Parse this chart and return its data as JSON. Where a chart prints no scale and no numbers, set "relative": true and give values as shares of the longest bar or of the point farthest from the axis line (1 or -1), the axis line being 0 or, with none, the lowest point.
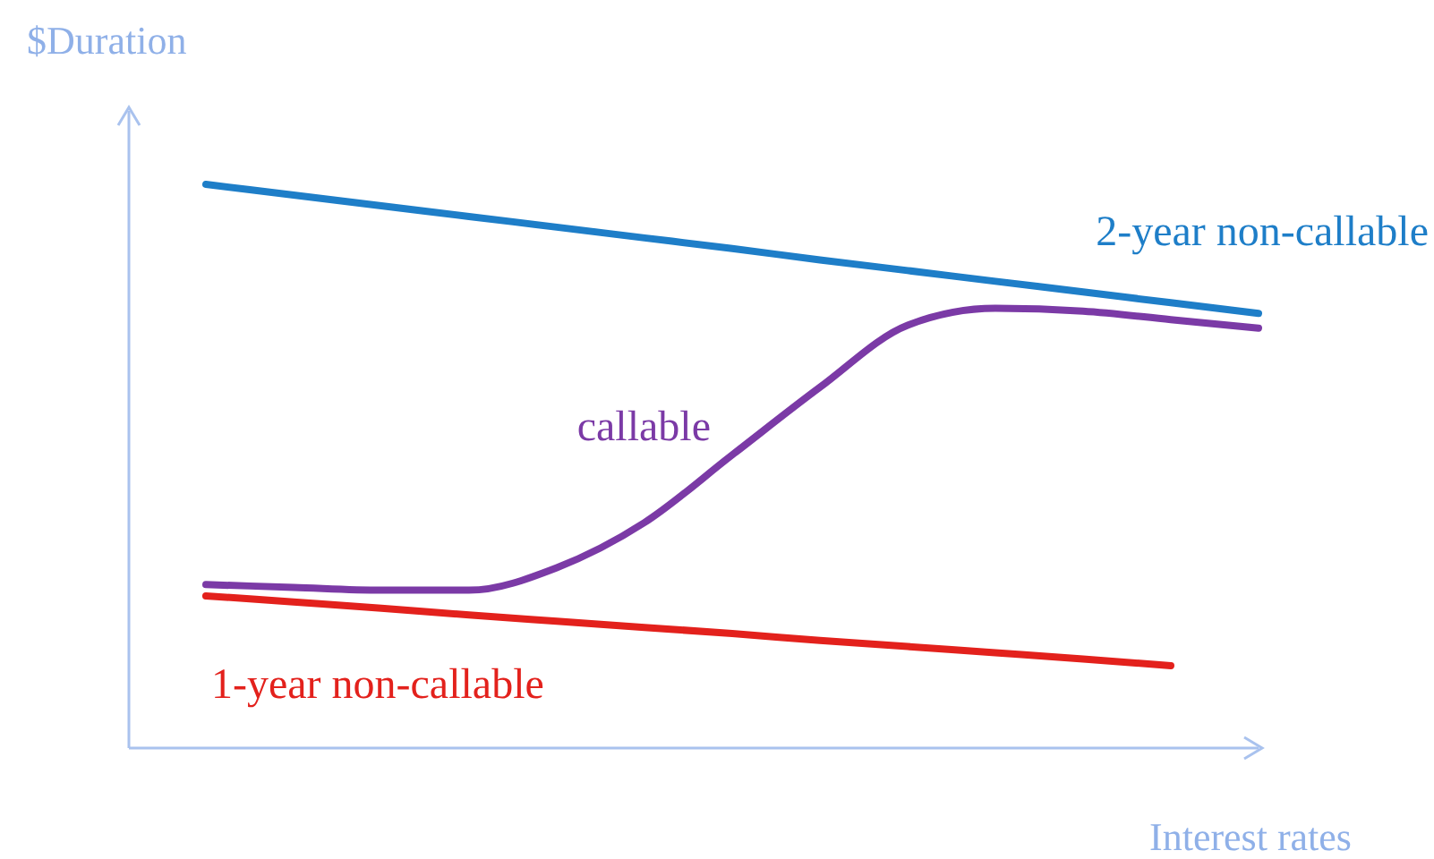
{
  "chart_data": {
    "type": "line",
    "relative": true,
    "xlabel": "Interest rates",
    "ylabel": "$Duration",
    "categories": [
      null,
      null,
      null,
      null,
      null,
      null,
      null,
      null,
      null,
      null,
      null,
      null,
      null
    ],
    "series": [
      {
        "name": "2-year non-callable",
        "color": "#1e7ec8",
        "values": [
          1,
          0.981,
          0.962,
          0.943,
          0.924,
          0.905,
          0.886,
          0.866,
          0.847,
          0.828,
          0.809,
          0.79,
          0.771
        ]
      },
      {
        "name": "callable",
        "color": "#7b3aa6",
        "values": [
          0.29,
          0.285,
          0.28,
          0.28,
          0.32,
          0.4,
          0.52,
          0.64,
          0.75,
          0.78,
          0.775,
          0.76,
          0.745
        ]
      },
      {
        "name": "1-year non-callable",
        "color": "#e3211c",
        "values": [
          0.27,
          0.259,
          0.248,
          0.236,
          0.225,
          0.214,
          0.203,
          0.191,
          0.18,
          0.169,
          0.158,
          0.146,
          null
        ]
      }
    ]
  }
}
